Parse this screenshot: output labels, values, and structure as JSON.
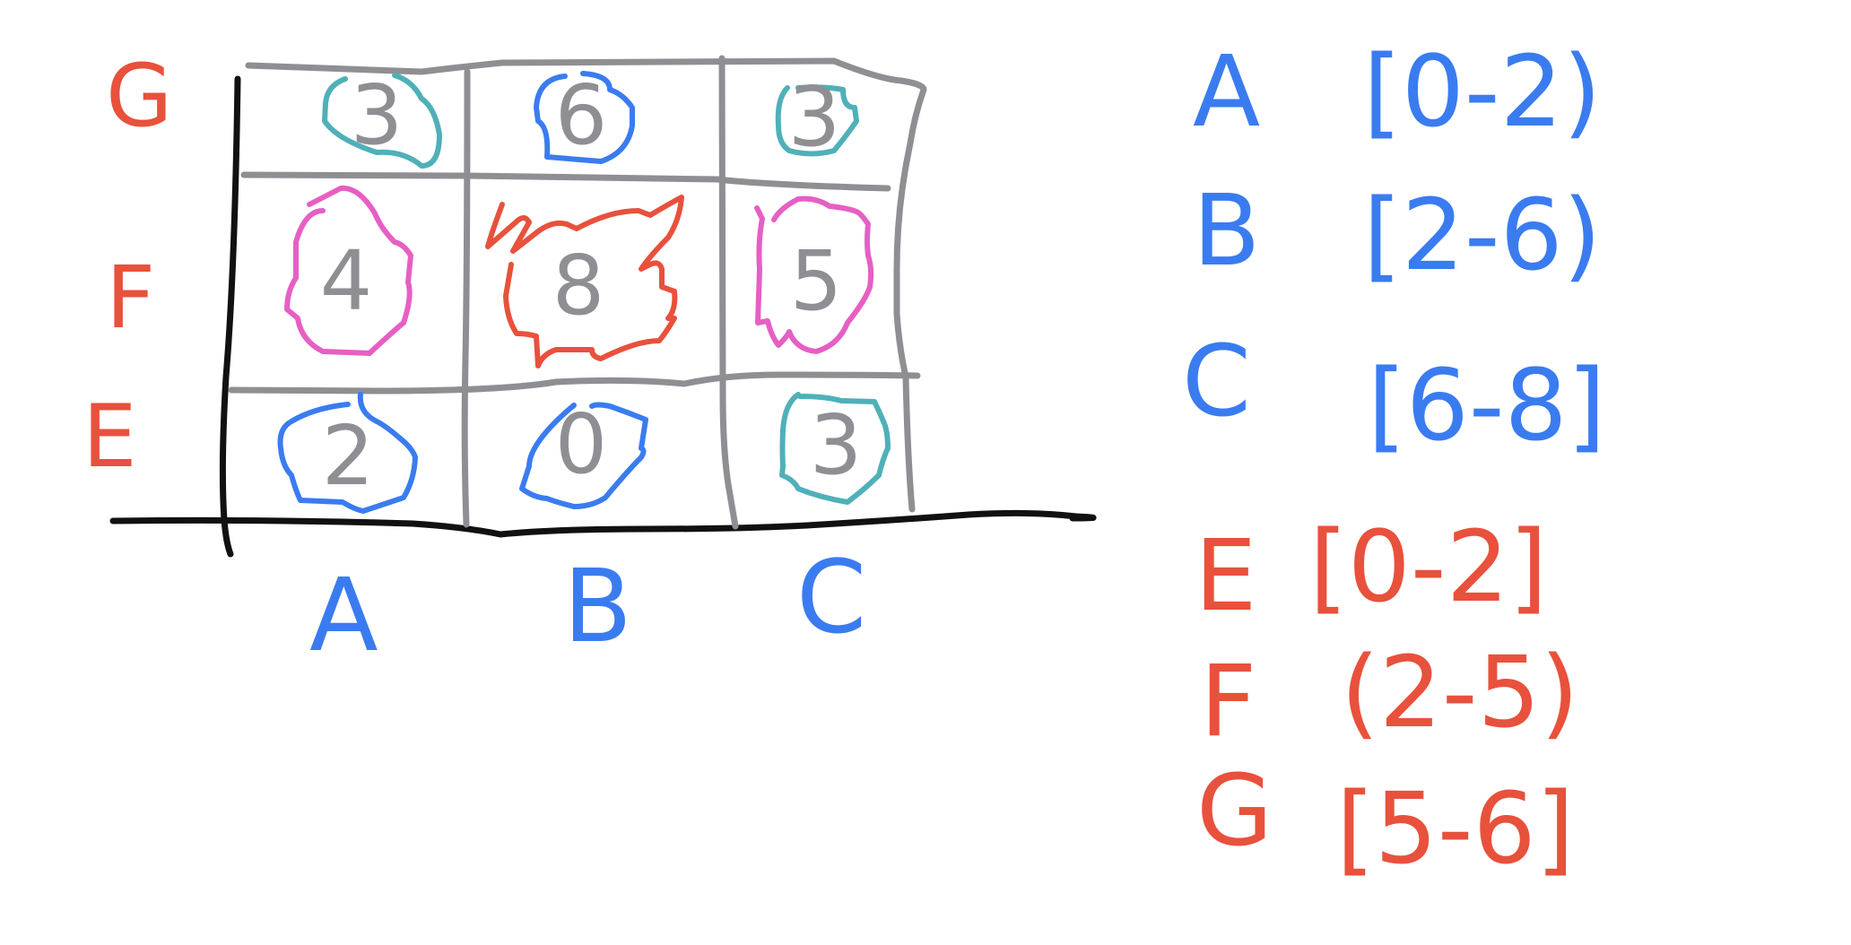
{
  "colors": {
    "red": "#e8513c",
    "blue": "#3a7cf0",
    "gray": "#8f8f93",
    "teal": "#4fb0b8",
    "pink": "#e65fc4",
    "black": "#111111"
  },
  "rows": [
    "G",
    "F",
    "E"
  ],
  "columns": [
    "A",
    "B",
    "C"
  ],
  "cells": [
    {
      "row": "G",
      "col": "A",
      "value": "3",
      "outline": "teal"
    },
    {
      "row": "G",
      "col": "B",
      "value": "6",
      "outline": "blue"
    },
    {
      "row": "G",
      "col": "C",
      "value": "3",
      "outline": "teal"
    },
    {
      "row": "F",
      "col": "A",
      "value": "4",
      "outline": "pink"
    },
    {
      "row": "F",
      "col": "B",
      "value": "8",
      "outline": "red"
    },
    {
      "row": "F",
      "col": "C",
      "value": "5",
      "outline": "pink"
    },
    {
      "row": "E",
      "col": "A",
      "value": "2",
      "outline": "blue"
    },
    {
      "row": "E",
      "col": "B",
      "value": "0",
      "outline": "blue"
    },
    {
      "row": "E",
      "col": "C",
      "value": "3",
      "outline": "teal"
    }
  ],
  "legend": [
    {
      "letter": "A",
      "range": "[0-2)",
      "color": "blue"
    },
    {
      "letter": "B",
      "range": "[2-6)",
      "color": "blue"
    },
    {
      "letter": "C",
      "range": "[6-8]",
      "color": "blue"
    },
    {
      "letter": "E",
      "range": "[0-2]",
      "color": "red"
    },
    {
      "letter": "F",
      "range": "(2-5)",
      "color": "red"
    },
    {
      "letter": "G",
      "range": "[5-6]",
      "color": "red"
    }
  ]
}
